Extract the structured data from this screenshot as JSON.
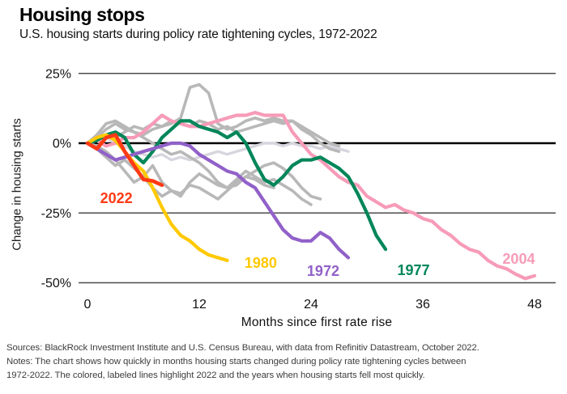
{
  "header": {
    "title": "Housing stops",
    "subtitle": "U.S. housing starts during policy rate tightening cycles, 1972-2022"
  },
  "axes": {
    "y_title": "Change in housing starts",
    "x_title": "Months since first rate rise"
  },
  "footer": {
    "line1": "Sources: BlackRock Investment Institute and U.S. Census Bureau, with data from Refinitiv Datastream, October 2022.",
    "line2": "Notes: The chart shows how quickly in months housing starts changed during policy rate tightening cycles between",
    "line3": "1972-2022.  The colored, labeled lines highlight 2022 and the years when housing starts fell most quickly."
  },
  "chart_data": {
    "type": "line",
    "title": "Housing stops",
    "subtitle": "U.S. housing starts during policy rate tightening cycles, 1972-2022",
    "xlabel": "Months since first rate rise",
    "ylabel": "Change in housing starts",
    "x_unit": "months since first rate rise",
    "y_unit": "percent change in housing starts",
    "xlim": [
      0,
      50
    ],
    "ylim": [
      -52,
      27
    ],
    "grid": "horizontal-only",
    "legend_position": "inline-labels",
    "grid_color": "#4c4c4c",
    "zero_line_color": "#000000",
    "xticks": [
      0,
      12,
      24,
      36,
      48
    ],
    "yticks": [
      {
        "label": "25%",
        "value": 25
      },
      {
        "label": "0%",
        "value": 0
      },
      {
        "label": "-25%",
        "value": -25
      },
      {
        "label": "-50%",
        "value": -50
      }
    ],
    "series": [
      {
        "name": "other-cycle-light",
        "color": "#d7d6df",
        "width": 3.4,
        "values": [
          0,
          1,
          2,
          0,
          -1,
          -3,
          -4,
          -5,
          -4,
          -6,
          -5,
          -6,
          -5,
          -4,
          -3,
          -4,
          -3,
          -2,
          -1,
          0,
          0,
          -1,
          0,
          -1,
          -1,
          -2,
          -1,
          -2,
          -3
        ]
      },
      {
        "name": "other-cycle-a",
        "color": "#b8b8b8",
        "width": 3.6,
        "values": [
          0,
          2,
          5,
          7,
          5,
          4,
          3,
          5,
          6,
          7,
          9,
          20,
          21,
          18,
          7,
          5,
          6,
          8,
          9,
          8,
          9,
          8,
          8,
          6,
          4,
          2,
          0,
          -1
        ]
      },
      {
        "name": "other-cycle-b",
        "color": "#b8b8b8",
        "width": 3.6,
        "values": [
          0,
          -2,
          -5,
          -8,
          -6,
          -9,
          -12,
          -8,
          -14,
          -17,
          -19,
          -14,
          -11,
          -13,
          -15,
          -16,
          -15,
          -12,
          -10,
          -8,
          -7,
          -9,
          -12,
          -16,
          -19,
          -20
        ]
      },
      {
        "name": "other-cycle-c",
        "color": "#b8b8b8",
        "width": 3.6,
        "values": [
          0,
          3,
          7,
          8,
          6,
          4,
          2,
          0,
          -2,
          -4,
          -3,
          -5,
          -7,
          -10,
          -14,
          -16,
          -13,
          -10,
          -12,
          -14,
          -13,
          -15,
          -17,
          -20,
          -22
        ]
      },
      {
        "name": "other-cycle-d",
        "color": "#b8b8b8",
        "width": 3.6,
        "values": [
          0,
          1,
          3,
          2,
          4,
          6,
          5,
          7,
          6,
          8,
          7,
          6,
          8,
          7,
          5,
          6,
          4,
          5,
          6,
          7,
          8,
          7,
          8,
          5,
          3,
          0,
          -2,
          -3
        ]
      },
      {
        "name": "other-cycle-e",
        "color": "#b8b8b8",
        "width": 3.6,
        "values": [
          0,
          -1,
          -3,
          -6,
          -10,
          -14,
          -12,
          -16,
          -19,
          -17,
          -18,
          -15,
          -16,
          -18,
          -20,
          -17,
          -14,
          -12,
          -13,
          -15,
          -16
        ]
      },
      {
        "name": "2004",
        "color": "#f79bb8",
        "width": 4.2,
        "label": {
          "text": "2004",
          "x": 46.3,
          "y": -43.2
        },
        "values": [
          0,
          1,
          -1,
          0,
          2,
          2,
          4,
          7,
          10,
          8,
          7,
          6,
          6,
          7,
          8,
          9,
          10,
          10,
          11,
          10,
          10,
          10,
          4,
          0,
          -4,
          -6,
          -9,
          -12,
          -14,
          -15,
          -19,
          -21,
          -23,
          -22,
          -24,
          -25,
          -27,
          -28,
          -31,
          -33,
          -36,
          -38,
          -39,
          -42,
          -44,
          -45,
          -47,
          -48.5,
          -47.5
        ]
      },
      {
        "name": "1977",
        "color": "#008659",
        "width": 4.2,
        "label": {
          "text": "1977",
          "x": 35.0,
          "y": -47.2
        },
        "values": [
          0,
          1,
          3,
          4,
          2,
          -4,
          -7,
          -3,
          2,
          5,
          8,
          8,
          6,
          5,
          4,
          2,
          4,
          0,
          -7,
          -13,
          -15,
          -12,
          -8,
          -6,
          -6,
          -5,
          -7,
          -9,
          -12,
          -18,
          -25,
          -33,
          -38
        ]
      },
      {
        "name": "1972",
        "color": "#9161c9",
        "width": 4.2,
        "label": {
          "text": "1972",
          "x": 25.3,
          "y": -47.5
        },
        "values": [
          0,
          -2,
          -4,
          -6,
          -5,
          -4,
          -3,
          -2,
          -1,
          0,
          0,
          -1,
          -4,
          -6,
          -8,
          -10,
          -11,
          -14,
          -16,
          -21,
          -26,
          -31,
          -34,
          -35,
          -35,
          -32,
          -34,
          -38,
          -41
        ]
      },
      {
        "name": "1980",
        "color": "#ffc900",
        "width": 4.2,
        "label": {
          "text": "1980",
          "x": 18.6,
          "y": -44.6
        },
        "values": [
          0,
          2,
          3,
          1,
          -3,
          -7,
          -10,
          -16,
          -23,
          -29,
          -33,
          -35,
          -38,
          -40,
          -41,
          -42
        ]
      },
      {
        "name": "2022",
        "color": "#ff3a14",
        "width": 4.6,
        "label": {
          "text": "2022",
          "x": 3.1,
          "y": -21.5
        },
        "values": [
          0,
          -2,
          2,
          3,
          -3,
          -8,
          -13,
          -13.5,
          -15
        ]
      }
    ]
  }
}
